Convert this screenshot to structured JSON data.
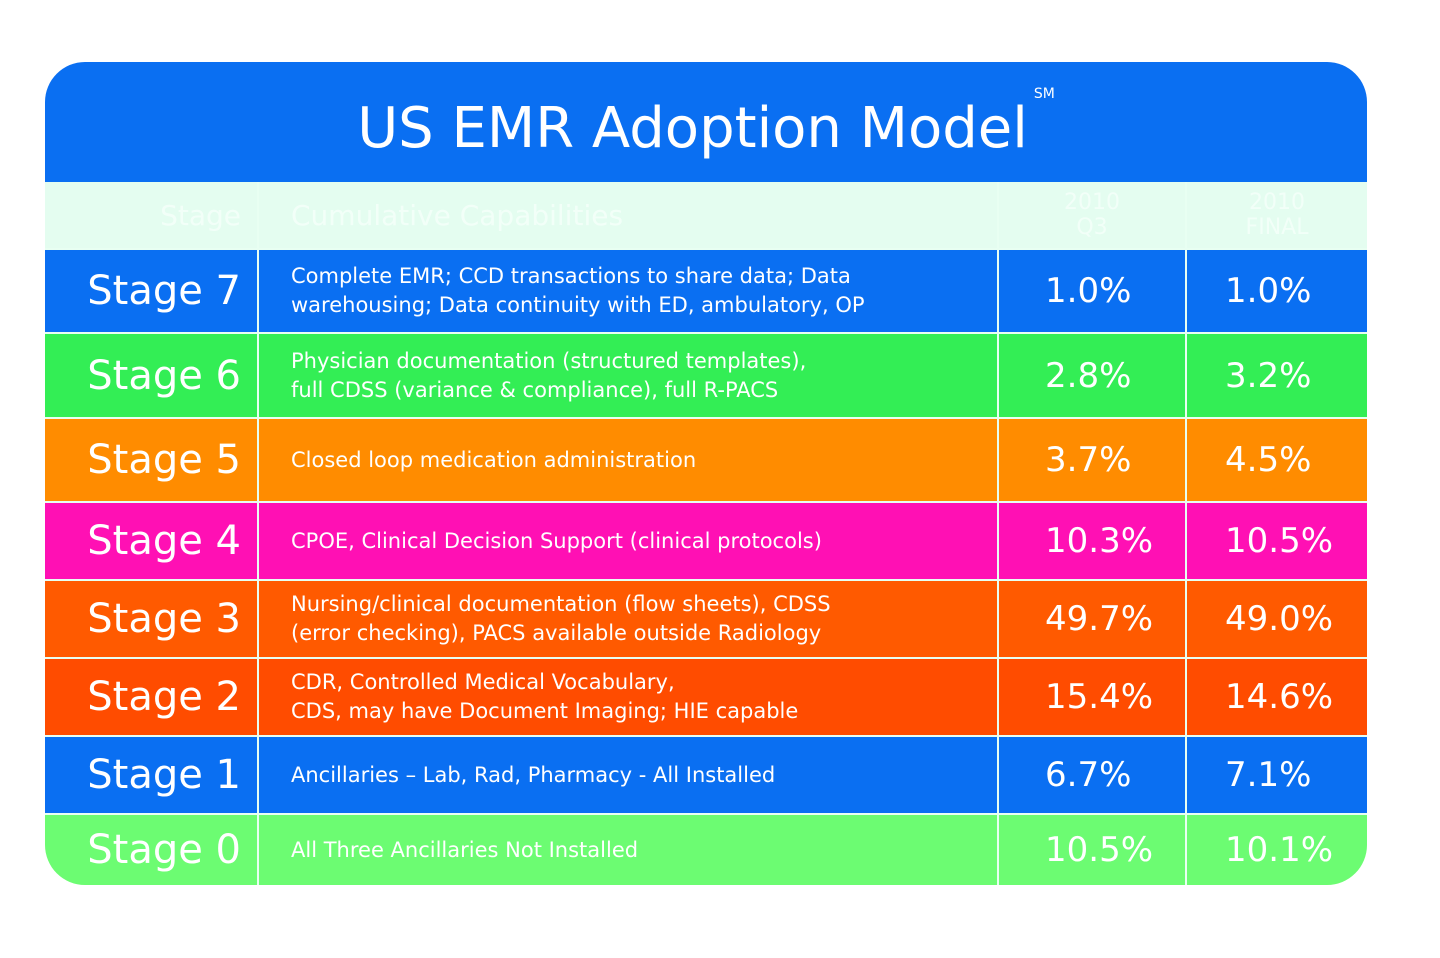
{
  "title": "US EMR Adoption Model",
  "title_mark": "SM",
  "colors": {
    "title_band": "#0a6ff2",
    "header_bg": "#e4fdf0"
  },
  "chart_data": {
    "type": "table",
    "columns": [
      "Stage",
      "Cumulative Capabilities",
      "2010 Q3",
      "2010 FINAL"
    ],
    "column_lines": [
      [
        "Stage"
      ],
      [
        "Cumulative Capabilities"
      ],
      [
        "2010",
        "Q3"
      ],
      [
        "2010",
        "FINAL"
      ]
    ],
    "rows": [
      {
        "stage": "Stage 7",
        "capabilities": [
          "Complete EMR; CCD transactions to share data; Data",
          "warehousing; Data continuity with ED, ambulatory, OP"
        ],
        "q3": "1.0%",
        "final": "1.0%",
        "color": "#0a6ff2"
      },
      {
        "stage": "Stage 6",
        "capabilities": [
          "Physician documentation (structured templates),",
          "full CDSS (variance & compliance), full R-PACS"
        ],
        "q3": "2.8%",
        "final": "3.2%",
        "color": "#33ee55"
      },
      {
        "stage": "Stage 5",
        "capabilities": [
          "Closed loop medication administration"
        ],
        "q3": "3.7%",
        "final": "4.5%",
        "color": "#ff8c00"
      },
      {
        "stage": "Stage 4",
        "capabilities": [
          "CPOE, Clinical Decision Support (clinical protocols)"
        ],
        "q3": "10.3%",
        "final": "10.5%",
        "color": "#ff10b4"
      },
      {
        "stage": "Stage 3",
        "capabilities": [
          "Nursing/clinical documentation (flow sheets), CDSS",
          "(error checking), PACS available outside Radiology"
        ],
        "q3": "49.7%",
        "final": "49.0%",
        "color": "#ff5a00"
      },
      {
        "stage": "Stage 2",
        "capabilities": [
          "CDR, Controlled Medical Vocabulary,",
          "CDS, may have Document Imaging; HIE capable"
        ],
        "q3": "15.4%",
        "final": "14.6%",
        "color": "#ff4c00"
      },
      {
        "stage": "Stage 1",
        "capabilities": [
          "Ancillaries – Lab, Rad, Pharmacy - All Installed"
        ],
        "q3": "6.7%",
        "final": "7.1%",
        "color": "#0a6ff2"
      },
      {
        "stage": "Stage 0",
        "capabilities": [
          "All Three Ancillaries Not Installed"
        ],
        "q3": "10.5%",
        "final": "10.1%",
        "color": "#6cfc72"
      }
    ]
  }
}
